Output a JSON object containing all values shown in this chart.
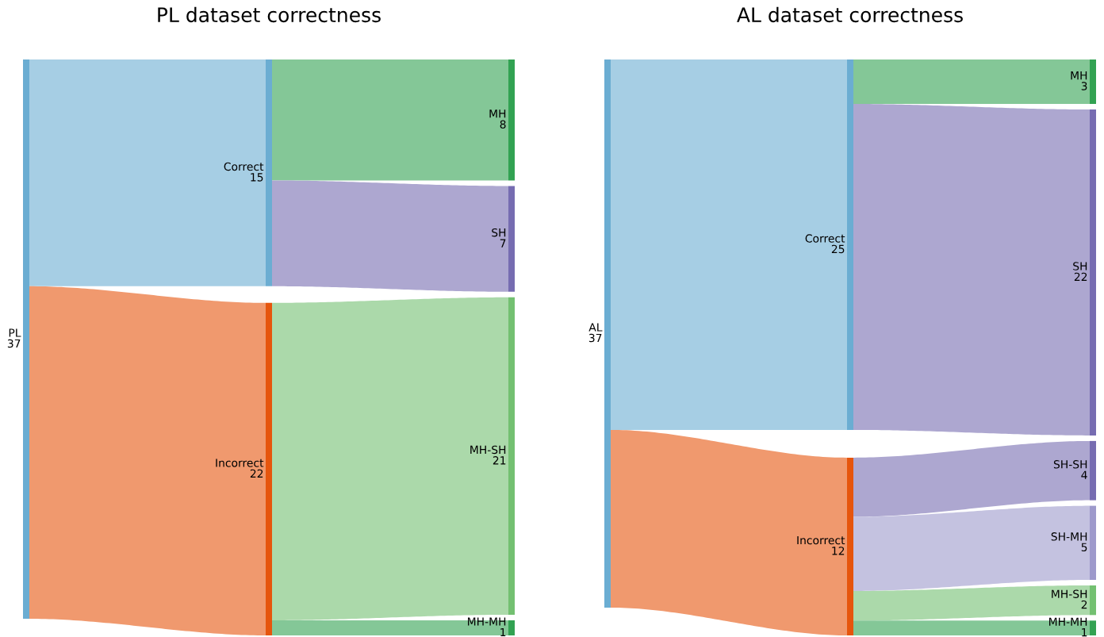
{
  "chart_data": [
    {
      "type": "other",
      "title": "PL dataset correctness",
      "categories": [
        "PL",
        "Correct",
        "Incorrect",
        "MH",
        "SH",
        "MH-SH",
        "MH-MH"
      ],
      "values": [
        37,
        15,
        22,
        8,
        7,
        21,
        1
      ],
      "colors": [
        "#a6cee4",
        "#a6cee4",
        "#f0996e",
        "#84c797",
        "#ada7d0",
        "#abd9aa",
        "#84c797"
      ],
      "data_labels": true
    },
    {
      "type": "other",
      "title": "AL dataset correctness",
      "categories": [
        "AL",
        "Correct",
        "Incorrect",
        "MH",
        "SH",
        "SH-SH",
        "SH-MH",
        "MH-SH",
        "MH-MH"
      ],
      "values": [
        37,
        25,
        12,
        3,
        22,
        4,
        5,
        2,
        1
      ],
      "colors": [
        "#a6cee4",
        "#a6cee4",
        "#f0996e",
        "#84c797",
        "#ada7d0",
        "#ada7d0",
        "#c4c2e0",
        "#abd9aa",
        "#84c797"
      ],
      "data_labels": true
    }
  ]
}
